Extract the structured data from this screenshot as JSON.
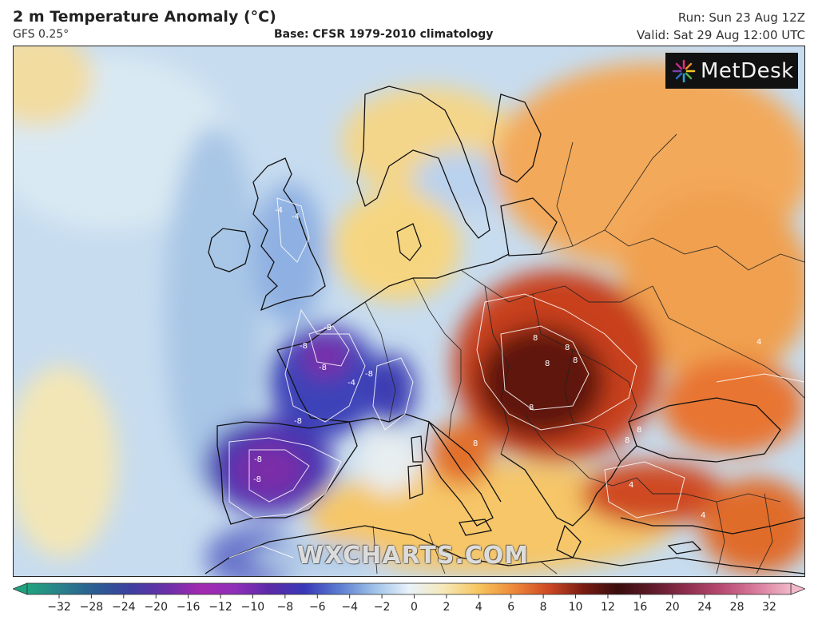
{
  "header": {
    "title": "2 m Temperature Anomaly (°C)",
    "model": "GFS 0.25°",
    "base": "Base: CFSR 1979-2010 climatology",
    "run": "Run: Sun 23 Aug 12Z",
    "valid": "Valid: Sat 29 Aug 12:00 UTC"
  },
  "logo": {
    "text": "MetDesk",
    "icon": "starburst-icon"
  },
  "watermark": "WXCHARTS.COM",
  "colorbar": {
    "ticks": [
      "−32",
      "−28",
      "−24",
      "−20",
      "−16",
      "−12",
      "−10",
      "−8",
      "−6",
      "−4",
      "−2",
      "0",
      "2",
      "4",
      "6",
      "8",
      "10",
      "12",
      "16",
      "20",
      "24",
      "28",
      "32"
    ],
    "colors": [
      "#1fa37f",
      "#2a7f8a",
      "#2b5b93",
      "#3f3fa0",
      "#6a2fa8",
      "#a22ab0",
      "#8f2fb8",
      "#5a2aa8",
      "#3838b8",
      "#5c7dd0",
      "#9ec2e8",
      "#e8f2fa",
      "#f6e8b8",
      "#f6c65e",
      "#ee8a3a",
      "#cf4a24",
      "#7a1c14",
      "#3a0e0c",
      "#5e1a2a",
      "#8f2e4e",
      "#b84a72",
      "#d97a9c",
      "#f0b8c8"
    ]
  },
  "contour_labels": [
    "-4",
    "-4",
    "-8",
    "-8",
    "-8",
    "-8",
    "-8",
    "-8",
    "-4",
    "8",
    "8",
    "8",
    "8",
    "8",
    "8",
    "4",
    "4",
    "4",
    "8",
    "8",
    "-8"
  ],
  "map_colors": {
    "ocean": "#c9dff0",
    "cool": "#8fb4e0",
    "cold": "#3a3fb0",
    "very_cold": "#6a2ea8",
    "neutral": "#eef3f0",
    "warm": "#f6c465",
    "hot": "#e07230",
    "very_hot": "#b8341e",
    "extreme": "#4a0f0c",
    "coast": "#111111"
  }
}
